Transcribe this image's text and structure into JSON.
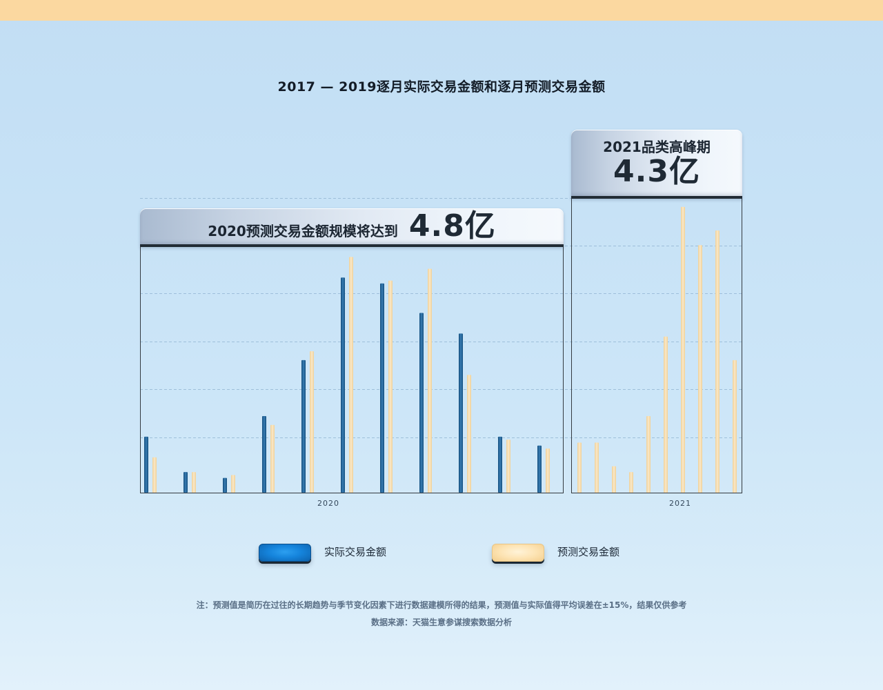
{
  "top_banner": {
    "color": "#fbd8a0"
  },
  "chart_data": {
    "type": "bar",
    "title": "2017 — 2019逐月实际交易金额和逐月预测交易金额",
    "ylim": [
      0,
      100
    ],
    "grid": true,
    "legend_position": "bottom",
    "series": [
      {
        "name": "实际交易金额",
        "color": "#1766a6"
      },
      {
        "name": "预测交易金额",
        "color": "#f5d69c"
      }
    ],
    "groups": [
      {
        "label": "2020",
        "callout": {
          "text": "2020预测交易金额规模将达到",
          "value": "4.8亿"
        },
        "values": [
          [
            19,
            7,
            5,
            26,
            45,
            73,
            71,
            61,
            54,
            19,
            16
          ],
          [
            12,
            7,
            6,
            23,
            48,
            80,
            72,
            76,
            40,
            18,
            15
          ]
        ]
      },
      {
        "label": "2021",
        "callout": {
          "text": "2021品类高峰期",
          "value": "4.3亿"
        },
        "values": [
          [],
          [
            17,
            17,
            9,
            7,
            26,
            53,
            97,
            84,
            89,
            45
          ]
        ]
      }
    ]
  },
  "footer": {
    "note": "注：预测值是简历在过往的长期趋势与季节变化因素下进行数据建模所得的结果，预测值与实际值得平均误差在±15%，结果仅供参考",
    "source": "数据来源：天猫生意参谋搜索数据分析"
  }
}
